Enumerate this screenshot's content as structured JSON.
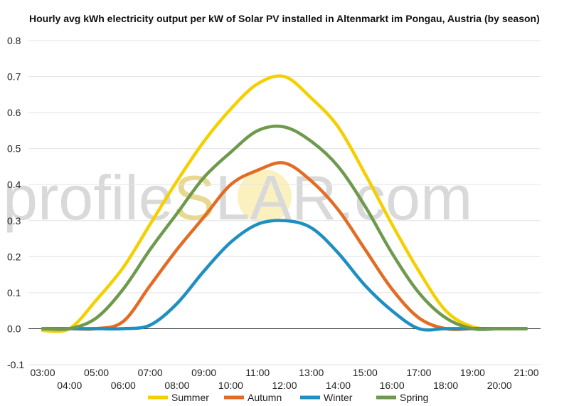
{
  "watermark": {
    "part1": "profile",
    "part2": "S",
    "part3": "LAR.com"
  },
  "chart_data": {
    "type": "line",
    "title": "Hourly avg kWh electricity output per kW of Solar PV installed in Altenmarkt im Pongau, Austria (by season)",
    "xlabel": "",
    "ylabel": "",
    "x_ticks": [
      "03:00",
      "04:00",
      "05:00",
      "06:00",
      "07:00",
      "08:00",
      "09:00",
      "10:00",
      "11:00",
      "12:00",
      "13:00",
      "14:00",
      "15:00",
      "16:00",
      "17:00",
      "18:00",
      "19:00",
      "20:00",
      "21:00"
    ],
    "x_range": [
      3,
      21
    ],
    "ylim": [
      -0.1,
      0.8
    ],
    "y_ticks": [
      -0.1,
      0.0,
      0.1,
      0.2,
      0.3,
      0.4,
      0.5,
      0.6,
      0.7,
      0.8
    ],
    "grid": true,
    "legend_position": "bottom",
    "series": [
      {
        "name": "Summer",
        "color": "#f5d000",
        "x": [
          3,
          4,
          5,
          6,
          7,
          8,
          9,
          10,
          11,
          12,
          13,
          14,
          15,
          16,
          17,
          18,
          19,
          20,
          21
        ],
        "values": [
          -0.005,
          0.0,
          0.08,
          0.17,
          0.29,
          0.41,
          0.52,
          0.61,
          0.68,
          0.7,
          0.64,
          0.56,
          0.43,
          0.29,
          0.16,
          0.05,
          0.005,
          0.0,
          0.0
        ]
      },
      {
        "name": "Autumn",
        "color": "#e36c24",
        "x": [
          3,
          4,
          5,
          6,
          7,
          8,
          9,
          10,
          11,
          12,
          13,
          14,
          15,
          16,
          17,
          18,
          19,
          20,
          21
        ],
        "values": [
          0.0,
          0.0,
          0.0,
          0.02,
          0.12,
          0.22,
          0.31,
          0.4,
          0.44,
          0.46,
          0.41,
          0.33,
          0.22,
          0.11,
          0.03,
          0.0,
          0.0,
          0.0,
          0.0
        ]
      },
      {
        "name": "Winter",
        "color": "#1f8fc1",
        "x": [
          3,
          4,
          5,
          6,
          7,
          8,
          9,
          10,
          11,
          12,
          13,
          14,
          15,
          16,
          17,
          18,
          19,
          20,
          21
        ],
        "values": [
          0.0,
          0.0,
          0.0,
          0.0,
          0.01,
          0.07,
          0.16,
          0.24,
          0.29,
          0.3,
          0.28,
          0.21,
          0.12,
          0.05,
          0.0,
          0.0,
          0.0,
          0.0,
          0.0
        ]
      },
      {
        "name": "Spring",
        "color": "#6e9a4d",
        "x": [
          3,
          4,
          5,
          6,
          7,
          8,
          9,
          10,
          11,
          12,
          13,
          14,
          15,
          16,
          17,
          18,
          19,
          20,
          21
        ],
        "values": [
          0.0,
          0.0,
          0.03,
          0.11,
          0.22,
          0.32,
          0.42,
          0.49,
          0.55,
          0.56,
          0.52,
          0.45,
          0.34,
          0.21,
          0.1,
          0.03,
          0.0,
          0.0,
          0.0
        ]
      }
    ]
  }
}
